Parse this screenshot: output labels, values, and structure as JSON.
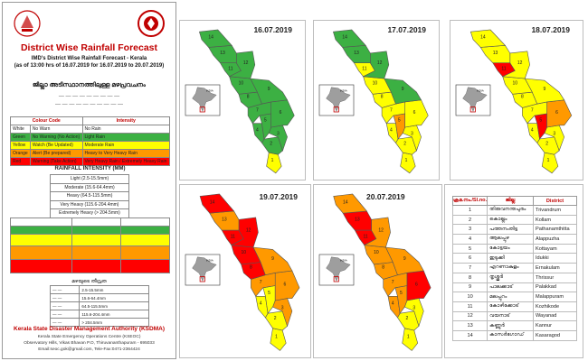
{
  "left_panel": {
    "title": "District Wise Rainfall Forecast",
    "subtitle": "IMD's District Wise Rainfall Forecast - Kerala",
    "issued": "(as of 13:00 hrs of 16.07.2019 for 16.07.2019 to 20.07.2019)",
    "malayalam_title": "ജില്ലാ അടിസ്ഥാനത്തിലുള്ള മഴപ്രവചനം",
    "colour_code_headers": [
      "Colour Code",
      "Intensity"
    ],
    "colour_codes": [
      {
        "colour": "White",
        "code": "No Warn",
        "intensity": "No Rain",
        "bg": "#ffffff"
      },
      {
        "colour": "Green",
        "code": "No Warning (No Action)",
        "intensity": "Light Rain",
        "bg": "#3cb043"
      },
      {
        "colour": "Yellow",
        "code": "Watch (Be Updated)",
        "intensity": "Moderate Rain",
        "bg": "#ffff00"
      },
      {
        "colour": "Orange",
        "code": "Alert (Be prepared)",
        "intensity": "Heavy to Very Heavy Rain",
        "bg": "#ff9900"
      },
      {
        "colour": "Red",
        "code": "Warning (Take Action)",
        "intensity": "Very Heavy Rain / Extremely Heavy Rain",
        "bg": "#ff0000"
      }
    ],
    "rainfall_intensity_title": "RAINFALL INTENSITY (MM)",
    "rainfall_intensity": [
      "Light (2.5-15.5mm)",
      "Moderate (15.6-64.4mm)",
      "Heavy (64.5-115.5mm)",
      "Very Heavy (115.6-204.4mm)",
      "Extremely Heavy (> 204.5mm)"
    ],
    "malayalam_table_rows": 5,
    "rainfall_ml_title": "മഴയുടെ തീവ്രത",
    "rainfall_ml_values": [
      "2.5-15.5mm",
      "15.6-64.4mm",
      "64.5-115.5mm",
      "115.6-204.4mm",
      "> 204.5mm"
    ],
    "authority": "Kerala State Disaster Management Authority (KSDMA)",
    "authority_lines": [
      "Kerala State Emergency Operations Centre (KSEOC)",
      "Observatory Hills, Vikas Bhavan P.O, Thiruvananthapuram - 695033",
      "Email:seoc.gok@gmail.com, Tele-Fax:0471-2364424"
    ]
  },
  "maps": [
    {
      "date": "16.07.2019",
      "colors": [
        "#ffff00",
        "#3cb043",
        "#3cb043",
        "#3cb043",
        "#3cb043",
        "#3cb043",
        "#3cb043",
        "#3cb043",
        "#3cb043",
        "#3cb043",
        "#3cb043",
        "#3cb043",
        "#3cb043",
        "#3cb043"
      ]
    },
    {
      "date": "17.07.2019",
      "colors": [
        "#ffff00",
        "#ffff00",
        "#ffff00",
        "#ffff00",
        "#ff9900",
        "#ffff00",
        "#ffff00",
        "#ffff00",
        "#3cb043",
        "#ffff00",
        "#ffff00",
        "#3cb043",
        "#3cb043",
        "#3cb043"
      ]
    },
    {
      "date": "18.07.2019",
      "colors": [
        "#ffff00",
        "#ffff00",
        "#ffff00",
        "#ffff00",
        "#ff0000",
        "#ff9900",
        "#ffff00",
        "#ffff00",
        "#ffff00",
        "#ffff00",
        "#ff0000",
        "#ffff00",
        "#ffff00",
        "#ffff00"
      ]
    },
    {
      "date": "19.07.2019",
      "colors": [
        "#ffff00",
        "#ffff00",
        "#ff9900",
        "#ffff00",
        "#ffff00",
        "#ff9900",
        "#ff9900",
        "#ff0000",
        "#ff9900",
        "#ff0000",
        "#ff0000",
        "#ff0000",
        "#ff9900",
        "#ff0000"
      ]
    },
    {
      "date": "20.07.2019",
      "colors": [
        "#ffff00",
        "#ffff00",
        "#ffff00",
        "#ff9900",
        "#ff9900",
        "#ff0000",
        "#ff9900",
        "#ff9900",
        "#ff9900",
        "#ff9900",
        "#ff0000",
        "#ff9900",
        "#ff0000",
        "#ff9900"
      ]
    }
  ],
  "inset_label": "INDIA",
  "district_table": {
    "headers": [
      "ക്രമ.നം./Sl.no.",
      "ജില്ല",
      "District"
    ],
    "rows": [
      [
        "1",
        "തിരുവനന്തപുരം",
        "Trivandrum"
      ],
      [
        "2",
        "കൊല്ലം",
        "Kollam"
      ],
      [
        "3",
        "പത്തനംതിട്ട",
        "Pathanamthitta"
      ],
      [
        "4",
        "ആലപ്പുഴ",
        "Alappuzha"
      ],
      [
        "5",
        "കോട്ടയം",
        "Kottayam"
      ],
      [
        "6",
        "ഇടുക്കി",
        "Idukki"
      ],
      [
        "7",
        "എറണാകുളം",
        "Ernakulam"
      ],
      [
        "8",
        "തൃശ്ശൂർ",
        "Thrissur"
      ],
      [
        "9",
        "പാലക്കാട്",
        "Palakkad"
      ],
      [
        "10",
        "മലപ്പുറം",
        "Malappuram"
      ],
      [
        "11",
        "കോഴിക്കോട്",
        "Kozhikode"
      ],
      [
        "12",
        "വയനാട്",
        "Wayanad"
      ],
      [
        "13",
        "കണ്ണൂർ",
        "Kannur"
      ],
      [
        "14",
        "കാസർഗോഡ്",
        "Kasaragod"
      ]
    ]
  }
}
